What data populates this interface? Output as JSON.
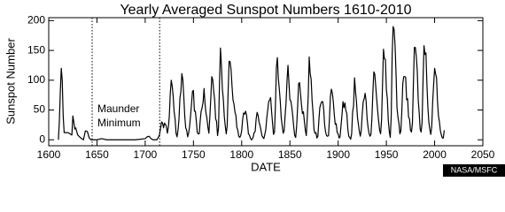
{
  "chart_data": {
    "type": "line",
    "title": "Yearly Averaged Sunspot Numbers 1610-2010",
    "x_label": "DATE",
    "y_label": "Sunspot Number",
    "annotations": [
      "Maunder",
      "Minimum"
    ],
    "credit": "NASA/MSFC",
    "color": "#000000",
    "reference_lines": [
      1645,
      1715
    ],
    "xlim": [
      1600,
      2050
    ],
    "ylim": [
      -10,
      205
    ],
    "xticks": [
      1600,
      1650,
      1700,
      1750,
      1800,
      1850,
      1900,
      1950,
      2000,
      2050
    ],
    "yticks": [
      0,
      50,
      100,
      150,
      200
    ],
    "x": [
      1610,
      1611,
      1612,
      1613,
      1614,
      1615,
      1616,
      1618,
      1620,
      1622,
      1624,
      1625,
      1626,
      1627,
      1628,
      1630,
      1632,
      1634,
      1636,
      1638,
      1640,
      1642,
      1644,
      1650,
      1655,
      1660,
      1670,
      1680,
      1690,
      1700,
      1702,
      1704,
      1706,
      1708,
      1710,
      1712,
      1714,
      1715,
      1716,
      1717,
      1718,
      1719,
      1720,
      1721,
      1722,
      1723,
      1724,
      1725,
      1726,
      1727,
      1728,
      1729,
      1730,
      1731,
      1732,
      1733,
      1734,
      1735,
      1736,
      1737,
      1738,
      1739,
      1740,
      1741,
      1742,
      1743,
      1744,
      1745,
      1746,
      1747,
      1748,
      1749,
      1750,
      1751,
      1752,
      1753,
      1754,
      1755,
      1756,
      1757,
      1758,
      1759,
      1760,
      1761,
      1762,
      1763,
      1764,
      1765,
      1766,
      1767,
      1768,
      1769,
      1770,
      1771,
      1772,
      1773,
      1774,
      1775,
      1776,
      1777,
      1778,
      1779,
      1780,
      1781,
      1782,
      1783,
      1784,
      1785,
      1786,
      1787,
      1788,
      1789,
      1790,
      1791,
      1792,
      1793,
      1794,
      1795,
      1796,
      1797,
      1798,
      1799,
      1800,
      1801,
      1802,
      1803,
      1804,
      1805,
      1806,
      1807,
      1808,
      1809,
      1810,
      1811,
      1812,
      1813,
      1814,
      1815,
      1816,
      1817,
      1818,
      1819,
      1820,
      1821,
      1822,
      1823,
      1824,
      1825,
      1826,
      1827,
      1828,
      1829,
      1830,
      1831,
      1832,
      1833,
      1834,
      1835,
      1836,
      1837,
      1838,
      1839,
      1840,
      1841,
      1842,
      1843,
      1844,
      1845,
      1846,
      1847,
      1848,
      1849,
      1850,
      1851,
      1852,
      1853,
      1854,
      1855,
      1856,
      1857,
      1858,
      1859,
      1860,
      1861,
      1862,
      1863,
      1864,
      1865,
      1866,
      1867,
      1868,
      1869,
      1870,
      1871,
      1872,
      1873,
      1874,
      1875,
      1876,
      1877,
      1878,
      1879,
      1880,
      1881,
      1882,
      1883,
      1884,
      1885,
      1886,
      1887,
      1888,
      1889,
      1890,
      1891,
      1892,
      1893,
      1894,
      1895,
      1896,
      1897,
      1898,
      1899,
      1900,
      1901,
      1902,
      1903,
      1904,
      1905,
      1906,
      1907,
      1908,
      1909,
      1910,
      1911,
      1912,
      1913,
      1914,
      1915,
      1916,
      1917,
      1918,
      1919,
      1920,
      1921,
      1922,
      1923,
      1924,
      1925,
      1926,
      1927,
      1928,
      1929,
      1930,
      1931,
      1932,
      1933,
      1934,
      1935,
      1936,
      1937,
      1938,
      1939,
      1940,
      1941,
      1942,
      1943,
      1944,
      1945,
      1946,
      1947,
      1948,
      1949,
      1950,
      1951,
      1952,
      1953,
      1954,
      1955,
      1956,
      1957,
      1958,
      1959,
      1960,
      1961,
      1962,
      1963,
      1964,
      1965,
      1966,
      1967,
      1968,
      1969,
      1970,
      1971,
      1972,
      1973,
      1974,
      1975,
      1976,
      1977,
      1978,
      1979,
      1980,
      1981,
      1982,
      1983,
      1984,
      1985,
      1986,
      1987,
      1988,
      1989,
      1990,
      1991,
      1992,
      1993,
      1994,
      1995,
      1996,
      1997,
      1998,
      1999,
      2000,
      2001,
      2002,
      2003,
      2004,
      2005,
      2006,
      2007,
      2008,
      2009,
      2010
    ],
    "values": [
      0,
      30,
      80,
      120,
      100,
      40,
      12,
      12,
      12,
      10,
      8,
      40,
      30,
      18,
      20,
      8,
      5,
      2,
      0,
      15,
      14,
      3,
      0,
      0,
      2,
      0,
      0,
      0,
      0,
      2,
      5,
      6,
      2,
      0,
      0,
      0,
      5,
      10,
      20,
      30,
      28,
      20,
      28,
      26,
      22,
      11,
      21,
      40,
      78,
      100,
      90,
      73,
      47,
      35,
      11,
      5,
      16,
      34,
      70,
      81,
      111,
      101,
      73,
      40,
      20,
      16,
      5,
      11,
      22,
      40,
      60,
      81,
      83,
      48,
      48,
      31,
      12,
      10,
      10,
      32,
      48,
      54,
      63,
      86,
      61,
      45,
      36,
      21,
      11,
      38,
      70,
      106,
      101,
      82,
      67,
      35,
      31,
      7,
      20,
      93,
      154,
      126,
      85,
      68,
      39,
      23,
      10,
      24,
      83,
      132,
      131,
      118,
      90,
      67,
      60,
      47,
      41,
      21,
      16,
      6,
      4,
      7,
      15,
      34,
      45,
      43,
      48,
      42,
      28,
      10,
      8,
      3,
      0,
      1,
      5,
      12,
      14,
      35,
      46,
      41,
      30,
      24,
      16,
      7,
      4,
      2,
      9,
      17,
      36,
      50,
      64,
      67,
      71,
      48,
      28,
      9,
      13,
      57,
      122,
      138,
      103,
      86,
      65,
      37,
      24,
      11,
      15,
      40,
      62,
      99,
      125,
      96,
      67,
      65,
      54,
      39,
      21,
      7,
      4,
      23,
      55,
      94,
      96,
      77,
      59,
      44,
      47,
      31,
      16,
      7,
      38,
      74,
      139,
      111,
      102,
      66,
      45,
      17,
      11,
      12,
      3,
      6,
      32,
      54,
      60,
      64,
      64,
      52,
      25,
      13,
      7,
      6,
      7,
      36,
      73,
      85,
      78,
      64,
      42,
      26,
      27,
      12,
      10,
      3,
      5,
      24,
      42,
      64,
      54,
      62,
      49,
      44,
      19,
      6,
      4,
      1,
      10,
      47,
      57,
      104,
      81,
      64,
      38,
      26,
      14,
      6,
      17,
      44,
      64,
      69,
      78,
      65,
      36,
      21,
      11,
      6,
      9,
      36,
      80,
      114,
      110,
      89,
      68,
      48,
      31,
      16,
      10,
      33,
      93,
      152,
      136,
      135,
      84,
      69,
      32,
      14,
      4,
      38,
      142,
      190,
      185,
      159,
      112,
      54,
      38,
      28,
      10,
      15,
      47,
      94,
      106,
      106,
      105,
      67,
      69,
      38,
      35,
      16,
      13,
      28,
      93,
      155,
      155,
      140,
      116,
      67,
      46,
      18,
      13,
      29,
      100,
      158,
      143,
      146,
      94,
      55,
      30,
      18,
      9,
      22,
      64,
      93,
      120,
      111,
      104,
      64,
      40,
      30,
      15,
      8,
      3,
      3,
      16
    ]
  }
}
